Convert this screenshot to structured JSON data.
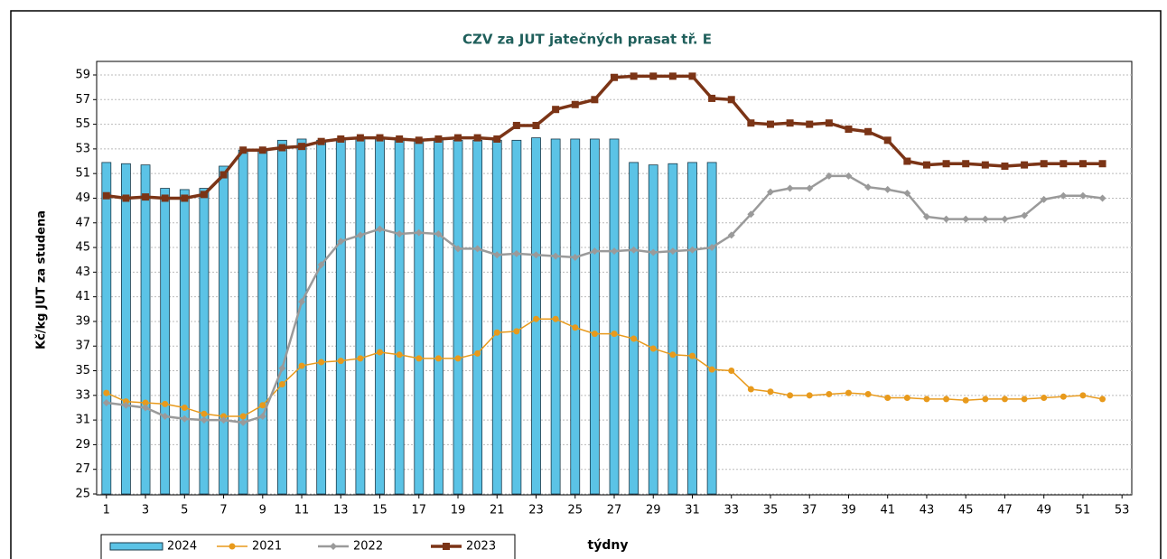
{
  "chart_data": {
    "type": "combo",
    "title": "CZV za JUT jatečných prasat tř. E",
    "y_label": "Kč/kg JUT za studena",
    "x_label": "týdny",
    "x": [
      1,
      2,
      3,
      4,
      5,
      6,
      7,
      8,
      9,
      10,
      11,
      12,
      13,
      14,
      15,
      16,
      17,
      18,
      19,
      20,
      21,
      22,
      23,
      24,
      25,
      26,
      27,
      28,
      29,
      30,
      31,
      32,
      33,
      34,
      35,
      36,
      37,
      38,
      39,
      40,
      41,
      42,
      43,
      44,
      45,
      46,
      47,
      48,
      49,
      50,
      51,
      52
    ],
    "xlim": [
      0.5,
      53.5
    ],
    "xticks": [
      1,
      3,
      5,
      7,
      9,
      11,
      13,
      15,
      17,
      19,
      21,
      23,
      25,
      27,
      29,
      31,
      33,
      35,
      37,
      39,
      41,
      43,
      45,
      47,
      49,
      51,
      53
    ],
    "ylim": [
      25,
      59
    ],
    "yticks": [
      25,
      27,
      29,
      31,
      33,
      35,
      37,
      39,
      41,
      43,
      45,
      47,
      49,
      51,
      53,
      55,
      57,
      59
    ],
    "grid": true,
    "series": [
      {
        "name": "2024",
        "kind": "bar",
        "color": "#5bc3e6",
        "values": [
          51.9,
          51.8,
          51.7,
          49.8,
          49.7,
          49.8,
          51.6,
          52.9,
          52.9,
          53.7,
          53.8,
          53.7,
          53.8,
          53.8,
          53.8,
          53.8,
          53.8,
          53.8,
          53.7,
          53.7,
          53.7,
          53.7,
          53.9,
          53.8,
          53.8,
          53.8,
          53.8,
          51.9,
          51.7,
          51.8,
          51.9,
          51.9,
          null,
          null,
          null,
          null,
          null,
          null,
          null,
          null,
          null,
          null,
          null,
          null,
          null,
          null,
          null,
          null,
          null,
          null,
          null,
          null
        ]
      },
      {
        "name": "2021",
        "kind": "line",
        "marker": "circle",
        "color": "#e89a1c",
        "values": [
          33.2,
          32.5,
          32.4,
          32.3,
          32.0,
          31.5,
          31.3,
          31.3,
          32.2,
          33.9,
          35.4,
          35.7,
          35.8,
          36.0,
          36.5,
          36.3,
          36.0,
          36.0,
          36.0,
          36.4,
          38.1,
          38.2,
          39.2,
          39.2,
          38.5,
          38.0,
          38.0,
          37.6,
          36.8,
          36.3,
          36.2,
          35.1,
          35.0,
          33.5,
          33.3,
          33.0,
          33.0,
          33.1,
          33.2,
          33.1,
          32.8,
          32.8,
          32.7,
          32.7,
          32.6,
          32.7,
          32.7,
          32.7,
          32.8,
          32.9,
          33.0,
          32.7
        ]
      },
      {
        "name": "2022",
        "kind": "line",
        "marker": "diamond",
        "color": "#9a9a9a",
        "values": [
          32.4,
          32.2,
          32.0,
          31.3,
          31.1,
          31.0,
          31.0,
          30.8,
          31.3,
          35.2,
          40.6,
          43.6,
          45.5,
          46.0,
          46.5,
          46.1,
          46.2,
          46.1,
          44.9,
          44.9,
          44.4,
          44.5,
          44.4,
          44.3,
          44.2,
          44.7,
          44.7,
          44.8,
          44.6,
          44.7,
          44.8,
          45.0,
          46.0,
          47.7,
          49.5,
          49.8,
          49.8,
          50.8,
          50.8,
          49.9,
          49.7,
          49.4,
          47.5,
          47.3,
          47.3,
          47.3,
          47.3,
          47.6,
          48.9,
          49.2,
          49.2,
          49.0
        ]
      },
      {
        "name": "2023",
        "kind": "line",
        "marker": "square",
        "color": "#7b3416",
        "values": [
          49.2,
          49.0,
          49.1,
          49.0,
          49.0,
          49.3,
          50.9,
          52.9,
          52.9,
          53.1,
          53.2,
          53.6,
          53.8,
          53.9,
          53.9,
          53.8,
          53.7,
          53.8,
          53.9,
          53.9,
          53.8,
          54.9,
          54.9,
          56.2,
          56.6,
          57.0,
          58.8,
          58.9,
          58.9,
          58.9,
          58.9,
          57.1,
          57.0,
          55.1,
          55.0,
          55.1,
          55.0,
          55.1,
          54.6,
          54.4,
          53.7,
          52.0,
          51.7,
          51.8,
          51.8,
          51.7,
          51.6,
          51.7,
          51.8,
          51.8,
          51.8,
          51.8
        ]
      }
    ]
  }
}
